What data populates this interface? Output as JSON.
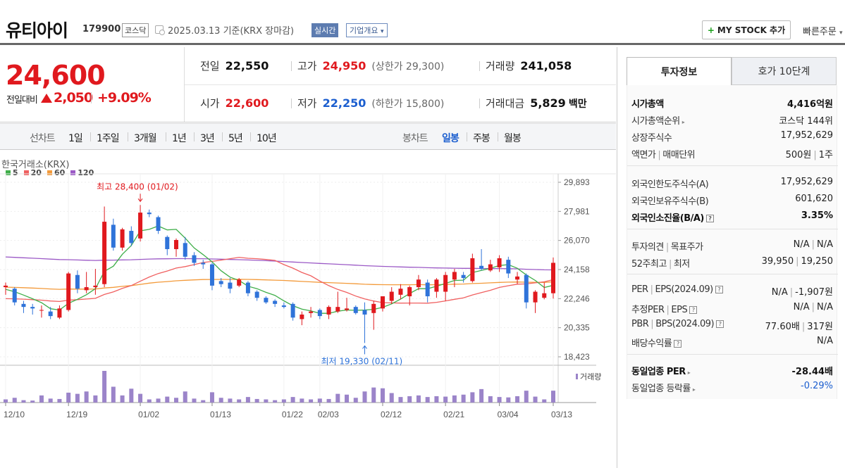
{
  "header": {
    "name": "유티아이",
    "code": "179900",
    "market": "코스닥",
    "date": "2025.03.13  기준(KRX 장마감)",
    "realtime": "실시간",
    "company": "기업개요",
    "company_chev": "▾",
    "mystock_plus": "+",
    "mystock": "MY STOCK 추가",
    "quick_order": "빠른주문",
    "quick_chev": "▾"
  },
  "price": {
    "now": "24,600",
    "change_label": "전일대비",
    "change": "2,050",
    "change_pct": "+9.09%"
  },
  "stats": {
    "prev_label": "전일",
    "prev": "22,550",
    "high_label": "고가",
    "high": "24,950",
    "high_sub": "(상한가 29,300)",
    "vol_label": "거래량",
    "vol": "241,058",
    "open_label": "시가",
    "open": "22,600",
    "low_label": "저가",
    "low": "22,250",
    "low_sub": "(하한가 15,800)",
    "amt_label": "거래대금",
    "amt": "5,829",
    "amt_unit": "백만"
  },
  "period": {
    "line_label": "선차트",
    "line_items": [
      "1일",
      "1주일",
      "3개월",
      "1년",
      "3년",
      "5년",
      "10년"
    ],
    "candle_label": "봉차트",
    "candle_items": [
      "일봉",
      "주봉",
      "월봉"
    ]
  },
  "chart_data": {
    "type": "candlestick",
    "source": "한국거래소(KRX)",
    "legend": [
      {
        "name": "5",
        "color": "#3fae49"
      },
      {
        "name": "20",
        "color": "#f06060"
      },
      {
        "name": "60",
        "color": "#f39a3a"
      },
      {
        "name": "120",
        "color": "#9b59c6"
      }
    ],
    "y_ticks": [
      "29,893",
      "27,981",
      "26,070",
      "24,158",
      "22,246",
      "20,335",
      "18,423"
    ],
    "ylim": [
      18423,
      29893
    ],
    "x_ticks": [
      {
        "label": "12/10",
        "index": 0
      },
      {
        "label": "12/19",
        "index": 7
      },
      {
        "label": "01/02",
        "index": 15
      },
      {
        "label": "01/13",
        "index": 23
      },
      {
        "label": "01/22",
        "index": 31
      },
      {
        "label": "02/03",
        "index": 35
      },
      {
        "label": "02/12",
        "index": 42
      },
      {
        "label": "02/21",
        "index": 49
      },
      {
        "label": "03/04",
        "index": 55
      },
      {
        "label": "03/13",
        "index": 61
      }
    ],
    "annotation_high": "최고 28,400 (01/02)",
    "annotation_low": "최저 19,330 (02/11)",
    "volume_label": "거래량",
    "candles": [
      [
        23000,
        23300,
        22500,
        23100
      ],
      [
        22900,
        23000,
        21800,
        22000
      ],
      [
        21900,
        22100,
        21300,
        21700
      ],
      [
        21700,
        21900,
        21200,
        21600
      ],
      [
        21500,
        21800,
        21000,
        21500
      ],
      [
        21400,
        21700,
        20900,
        21100
      ],
      [
        21000,
        21800,
        20900,
        21600
      ],
      [
        21500,
        24000,
        21400,
        23900
      ],
      [
        23800,
        24100,
        22600,
        22900
      ],
      [
        22800,
        24000,
        22600,
        23000
      ],
      [
        23000,
        24200,
        22500,
        23100
      ],
      [
        23200,
        28300,
        23000,
        27300
      ],
      [
        27100,
        27500,
        25400,
        25600
      ],
      [
        25600,
        26900,
        25400,
        26800
      ],
      [
        26700,
        27000,
        25700,
        25900
      ],
      [
        26200,
        28400,
        26000,
        27900
      ],
      [
        27900,
        28100,
        27600,
        27800
      ],
      [
        27600,
        27700,
        26500,
        26700
      ],
      [
        26300,
        26400,
        25100,
        25500
      ],
      [
        25500,
        26200,
        25000,
        26100
      ],
      [
        25900,
        26300,
        24800,
        25000
      ],
      [
        25100,
        25300,
        24400,
        24600
      ],
      [
        24600,
        24800,
        24200,
        24500
      ],
      [
        24500,
        24600,
        22800,
        23100
      ],
      [
        23400,
        23600,
        23000,
        23200
      ],
      [
        23300,
        23600,
        22600,
        22900
      ],
      [
        23100,
        23600,
        23000,
        23500
      ],
      [
        23300,
        23400,
        22400,
        22600
      ],
      [
        22700,
        22800,
        22100,
        22300
      ],
      [
        22300,
        22400,
        21900,
        22000
      ],
      [
        22100,
        22200,
        21700,
        21900
      ],
      [
        21800,
        22000,
        21600,
        21700
      ],
      [
        21900,
        22000,
        20800,
        21000
      ],
      [
        20900,
        21400,
        20500,
        21200
      ],
      [
        21300,
        21700,
        21000,
        21400
      ],
      [
        21500,
        21600,
        20900,
        21100
      ],
      [
        21200,
        21800,
        20900,
        21700
      ],
      [
        21400,
        22700,
        21300,
        21700
      ],
      [
        21500,
        22300,
        21400,
        21600
      ],
      [
        21700,
        21800,
        21200,
        21300
      ],
      [
        21500,
        22000,
        19330,
        21200
      ],
      [
        21300,
        22100,
        20200,
        21900
      ],
      [
        21600,
        22400,
        21400,
        22400
      ],
      [
        22100,
        23000,
        21900,
        22700
      ],
      [
        22500,
        23200,
        22200,
        22900
      ],
      [
        22400,
        23100,
        21800,
        23000
      ],
      [
        23000,
        23800,
        22800,
        23500
      ],
      [
        23300,
        23500,
        22000,
        22400
      ],
      [
        22700,
        23600,
        22300,
        23500
      ],
      [
        22700,
        24000,
        22100,
        23800
      ],
      [
        23500,
        24200,
        23000,
        24000
      ],
      [
        23800,
        24000,
        23300,
        23600
      ],
      [
        23400,
        25200,
        23300,
        24900
      ],
      [
        24400,
        25500,
        24100,
        24200
      ],
      [
        24100,
        24800,
        24000,
        24500
      ],
      [
        24300,
        25100,
        24000,
        24900
      ],
      [
        24800,
        25000,
        23600,
        23900
      ],
      [
        23500,
        24000,
        23200,
        23700
      ],
      [
        23800,
        23900,
        21600,
        22000
      ],
      [
        22000,
        22800,
        21300,
        22700
      ],
      [
        22300,
        23300,
        22200,
        22600
      ],
      [
        22600,
        24950,
        22250,
        24600
      ]
    ],
    "volumes": [
      8,
      12,
      6,
      5,
      18,
      10,
      9,
      25,
      22,
      28,
      18,
      80,
      40,
      18,
      35,
      22,
      8,
      10,
      15,
      12,
      28,
      10,
      6,
      26,
      12,
      10,
      8,
      14,
      9,
      8,
      6,
      8,
      14,
      10,
      8,
      10,
      9,
      22,
      20,
      12,
      28,
      38,
      36,
      24,
      14,
      16,
      18,
      14,
      16,
      15,
      18,
      20,
      26,
      34,
      16,
      14,
      13,
      16,
      30,
      15,
      8,
      30
    ]
  },
  "right": {
    "tab_active": "투자정보",
    "tab_inactive": "호가 10단계",
    "rows": {
      "mcap_l": "시가총액",
      "mcap_r": "4,416억원",
      "rank_l": "시가총액순위",
      "rank_r": "코스닥 144위",
      "shares_l": "상장주식수",
      "shares_r": "17,952,629",
      "face_l1": "액면가",
      "face_l2": "매매단위",
      "face_r1": "500원",
      "face_r2": "1주",
      "fa_l": "외국인한도주식수(A)",
      "fa_r": "17,952,629",
      "fb_l": "외국인보유주식수(B)",
      "fb_r": "601,620",
      "fr_l": "외국인소진율(B/A)",
      "fr_r": "3.35%",
      "op_l1": "투자의견",
      "op_l2": "목표주가",
      "op_r1": "N/A",
      "op_r2": "N/A",
      "w52_l1": "52주최고",
      "w52_l2": "최저",
      "w52_r1": "39,950",
      "w52_r2": "19,250",
      "per_l1": "PER",
      "per_l2": "EPS(2024.09)",
      "per_r1": "N/A",
      "per_r2": "-1,907원",
      "eper_l1": "추정PER",
      "eper_l2": "EPS",
      "eper_r1": "N/A",
      "eper_r2": "N/A",
      "pbr_l1": "PBR",
      "pbr_l2": "BPS(2024.09)",
      "pbr_r1": "77.60배",
      "pbr_r2": "317원",
      "div_l": "배당수익률",
      "div_r": "N/A",
      "ind_per_l": "동일업종 PER",
      "ind_per_r": "-28.44배",
      "ind_chg_l": "동일업종 등락률",
      "ind_chg_r": "-0.29%"
    }
  }
}
